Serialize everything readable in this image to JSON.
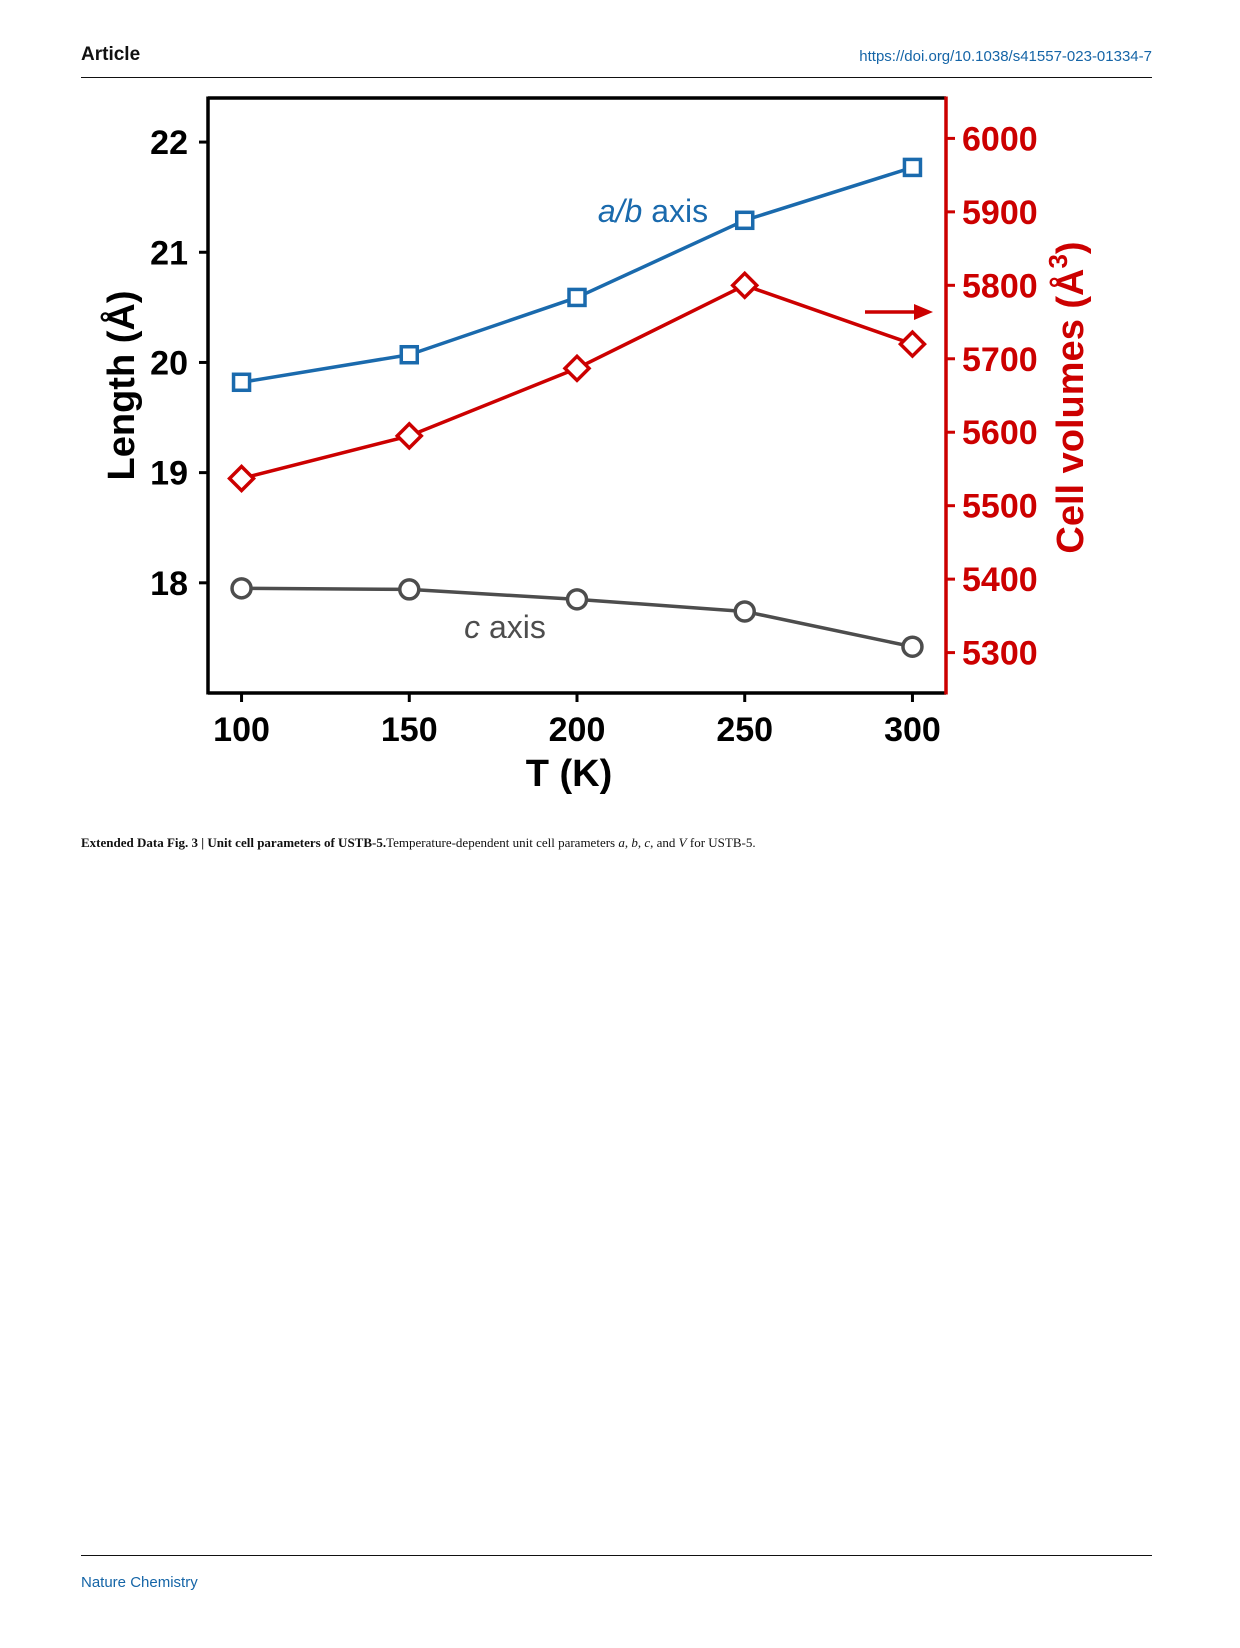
{
  "header": {
    "section": "Article",
    "doi": "https://doi.org/10.1038/s41557-023-01334-7"
  },
  "footer": {
    "journal": "Nature Chemistry"
  },
  "caption": {
    "label": "Extended Data Fig. 3 |",
    "title": "Unit cell parameters of USTB-5.",
    "text_before": "Temperature-dependent unit cell parameters ",
    "param_a": "a",
    "sep1": ", ",
    "param_b": "b",
    "sep2": ", ",
    "param_c": "c",
    "sep3": ", and ",
    "param_v": "V",
    "text_after": " for USTB-5."
  },
  "colors": {
    "ab": "#1a6aad",
    "c": "#4d4d4d",
    "v": "#cc0000",
    "frame": "#000000"
  },
  "chart_data": {
    "type": "line",
    "xlabel": "T (K)",
    "ylabel": "Length (Å)",
    "y2label_main": "Cell volumes (Å",
    "y2label_sup": "3",
    "y2label_close": ")",
    "x": [
      100,
      150,
      200,
      250,
      300
    ],
    "xticks": [
      100,
      150,
      200,
      250,
      300
    ],
    "xlim": [
      90,
      310
    ],
    "yticks": [
      18,
      19,
      20,
      21,
      22
    ],
    "ylim": [
      17.0,
      22.4
    ],
    "y2ticks": [
      5300,
      5400,
      5500,
      5600,
      5700,
      5800,
      5900,
      6000
    ],
    "y2lim": [
      5245,
      6055
    ],
    "series": [
      {
        "name": "a/b axis",
        "axis": "left",
        "marker": "square",
        "color_key": "ab",
        "values": [
          19.82,
          20.07,
          20.59,
          21.29,
          21.77
        ]
      },
      {
        "name": "c axis",
        "axis": "left",
        "marker": "circle",
        "color_key": "c",
        "values": [
          17.95,
          17.94,
          17.85,
          17.74,
          17.42
        ]
      },
      {
        "name": "",
        "axis": "right",
        "marker": "diamond",
        "color_key": "v",
        "values": [
          5537,
          5595,
          5687,
          5800,
          5720
        ]
      }
    ],
    "annotations": [
      {
        "text_italic": "a/b",
        "text_plain": " axis",
        "color_key": "ab"
      },
      {
        "text_italic": "c",
        "text_plain": " axis",
        "color_key": "c"
      }
    ],
    "arrow": {
      "direction": "right",
      "color_key": "v",
      "points_to": "right-axis"
    },
    "grid": false,
    "legend": "none"
  }
}
